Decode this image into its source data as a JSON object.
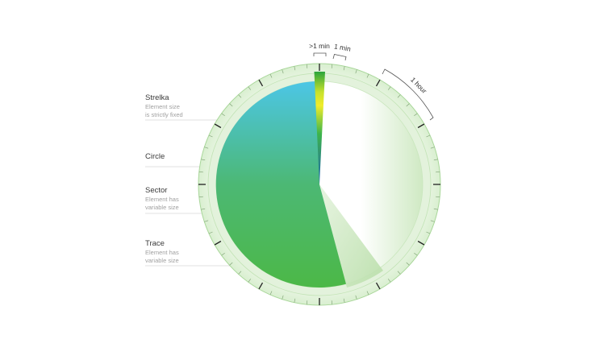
{
  "labels": {
    "strelka": {
      "title": "Strelka",
      "desc1": "Element size",
      "desc2": "is strictly fixed"
    },
    "circle": {
      "title": "Circle"
    },
    "sector": {
      "title": "Sector",
      "desc1": "Element has",
      "desc2": "variable size"
    },
    "trace": {
      "title": "Trace",
      "desc1": "Element has",
      "desc2": "variable size"
    }
  },
  "brackets": {
    "more_than_one_min": ">1 min",
    "one_min": "1 min",
    "one_hour": "1 hour"
  },
  "colors": {
    "ring_outer": "#e4f3dd",
    "ring_inner": "#d3ecc8",
    "sector_top": "#4cc6e6",
    "sector_bottom": "#4cb847",
    "trace": "#bfe3b0",
    "strelka_top": "#1e9a3c",
    "strelka_mid": "#f1ec2a",
    "strelka_bottom": "#1d5fb3"
  }
}
